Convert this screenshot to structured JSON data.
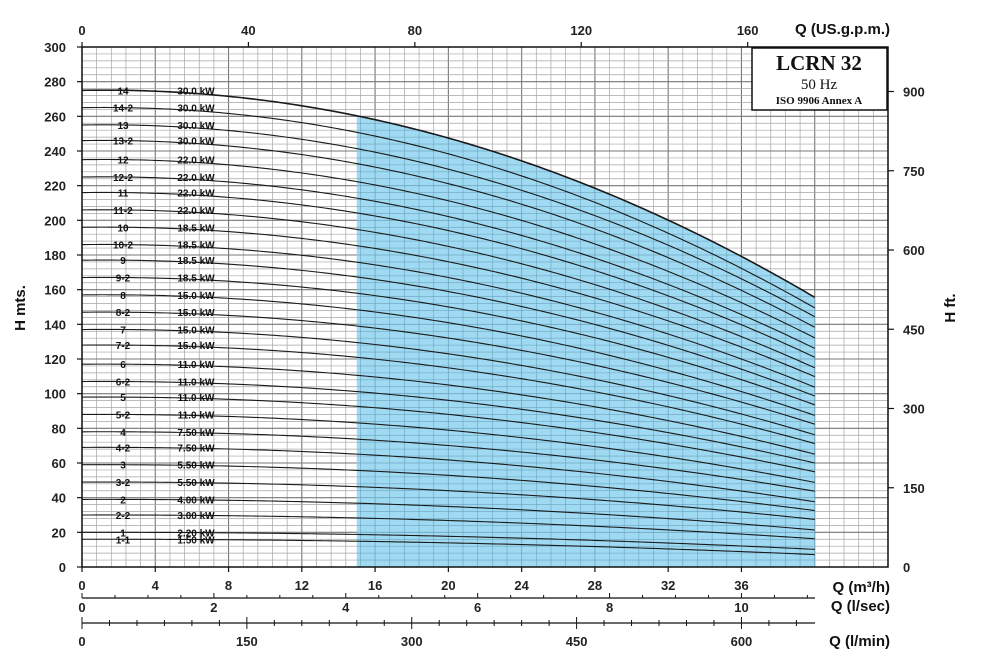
{
  "chart_data": {
    "type": "line",
    "title": "LCRN 32",
    "subtitle": "50 Hz",
    "standard": "ISO 9906 Annex A",
    "y_left": {
      "label": "H mts.",
      "range": [
        0,
        300
      ],
      "ticks": [
        "0",
        "20",
        "40",
        "60",
        "80",
        "100",
        "120",
        "140",
        "160",
        "180",
        "200",
        "220",
        "240",
        "260",
        "280",
        "300"
      ]
    },
    "y_right": {
      "label": "H ft.",
      "range_ft": [
        0,
        984.25
      ],
      "ticks": [
        "150",
        "300",
        "450",
        "600",
        "750",
        "900"
      ]
    },
    "x_bottom_m3h": {
      "label": "Q (m³/h)",
      "range": [
        0,
        44
      ],
      "ticks": [
        "0",
        "4",
        "8",
        "12",
        "16",
        "20",
        "24",
        "28",
        "32",
        "36"
      ]
    },
    "x_top_gpm": {
      "label": "Q (US.g.p.m.)",
      "ticks": [
        "0",
        "40",
        "80",
        "120",
        "160"
      ]
    },
    "x_lsec": {
      "label": "Q (l/sec)",
      "ticks": [
        "0",
        "2",
        "4",
        "6",
        "8",
        "10"
      ]
    },
    "x_lmin": {
      "label": "Q (l/min)",
      "ticks": [
        "0",
        "150",
        "300",
        "450",
        "600"
      ]
    },
    "highlight_region": {
      "q_from": 15,
      "q_to": 40,
      "color": "#8fd4f0"
    },
    "grid": true,
    "q_end": 40,
    "series": [
      {
        "name": "14",
        "power": "30.0 kW",
        "h0": 275,
        "hend": 153
      },
      {
        "name": "14-2",
        "power": "30.0 kW",
        "h0": 265,
        "hend": 147
      },
      {
        "name": "13",
        "power": "30.0 kW",
        "h0": 255,
        "hend": 142
      },
      {
        "name": "13-2",
        "power": "30.0 kW",
        "h0": 246,
        "hend": 136
      },
      {
        "name": "12",
        "power": "22.0 kW",
        "h0": 235,
        "hend": 130
      },
      {
        "name": "12-2",
        "power": "22.0 kW",
        "h0": 225,
        "hend": 124
      },
      {
        "name": "11",
        "power": "22.0 kW",
        "h0": 216,
        "hend": 119
      },
      {
        "name": "11-2",
        "power": "22.0 kW",
        "h0": 206,
        "hend": 113
      },
      {
        "name": "10",
        "power": "18.5 kW",
        "h0": 196,
        "hend": 108
      },
      {
        "name": "10-2",
        "power": "18.5 kW",
        "h0": 186,
        "hend": 102
      },
      {
        "name": "9",
        "power": "18.5 kW",
        "h0": 177,
        "hend": 97
      },
      {
        "name": "9-2",
        "power": "18.5 kW",
        "h0": 167,
        "hend": 92
      },
      {
        "name": "8",
        "power": "15.0 kW",
        "h0": 157,
        "hend": 86
      },
      {
        "name": "8-2",
        "power": "15.0 kW",
        "h0": 147,
        "hend": 81
      },
      {
        "name": "7",
        "power": "15.0 kW",
        "h0": 137,
        "hend": 75
      },
      {
        "name": "7-2",
        "power": "15.0 kW",
        "h0": 128,
        "hend": 70
      },
      {
        "name": "6",
        "power": "11.0 kW",
        "h0": 117,
        "hend": 64
      },
      {
        "name": "6-2",
        "power": "11.0 kW",
        "h0": 107,
        "hend": 59
      },
      {
        "name": "5",
        "power": "11.0 kW",
        "h0": 98,
        "hend": 54
      },
      {
        "name": "5-2",
        "power": "11.0 kW",
        "h0": 88,
        "hend": 48
      },
      {
        "name": "4",
        "power": "7.50 kW",
        "h0": 78,
        "hend": 43
      },
      {
        "name": "4-2",
        "power": "7.50 kW",
        "h0": 69,
        "hend": 37
      },
      {
        "name": "3",
        "power": "5.50 kW",
        "h0": 59,
        "hend": 32
      },
      {
        "name": "3-2",
        "power": "5.50 kW",
        "h0": 49,
        "hend": 27
      },
      {
        "name": "2",
        "power": "4.00 kW",
        "h0": 39,
        "hend": 21
      },
      {
        "name": "2-2",
        "power": "3.00 kW",
        "h0": 30,
        "hend": 16
      },
      {
        "name": "1",
        "power": "2.20 kW",
        "h0": 20,
        "hend": 10
      },
      {
        "name": "1-1",
        "power": "1.50 kW",
        "h0": 16,
        "hend": 7
      }
    ]
  }
}
